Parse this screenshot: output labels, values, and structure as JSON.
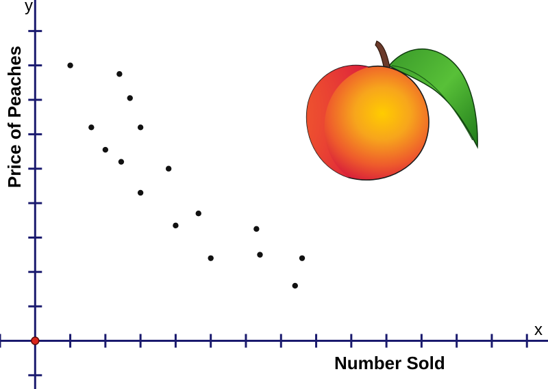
{
  "chart_data": {
    "type": "scatter",
    "title": "",
    "xlabel": "Number Sold",
    "ylabel": "Price of Peaches",
    "x_axis_letter": "x",
    "y_axis_letter": "y",
    "xlim": [
      -1,
      14.6
    ],
    "ylim": [
      -1.4,
      9.9
    ],
    "ticks": {
      "x_step": 1,
      "y_step": 1
    },
    "grid": false,
    "points": [
      {
        "x": 1.0,
        "y": 8.0
      },
      {
        "x": 2.4,
        "y": 7.75
      },
      {
        "x": 2.7,
        "y": 7.05
      },
      {
        "x": 1.6,
        "y": 6.2
      },
      {
        "x": 3.0,
        "y": 6.2
      },
      {
        "x": 2.0,
        "y": 5.55
      },
      {
        "x": 2.45,
        "y": 5.2
      },
      {
        "x": 3.8,
        "y": 5.0
      },
      {
        "x": 3.0,
        "y": 4.3
      },
      {
        "x": 4.0,
        "y": 3.35
      },
      {
        "x": 4.65,
        "y": 3.7
      },
      {
        "x": 5.0,
        "y": 2.4
      },
      {
        "x": 6.3,
        "y": 3.25
      },
      {
        "x": 6.4,
        "y": 2.5
      },
      {
        "x": 7.6,
        "y": 2.4
      },
      {
        "x": 7.4,
        "y": 1.6
      }
    ],
    "colors": {
      "axis": "#1a1a6e",
      "point": "#111111",
      "origin": "#d9251c"
    }
  },
  "illustration": {
    "icon": "peach-icon"
  }
}
